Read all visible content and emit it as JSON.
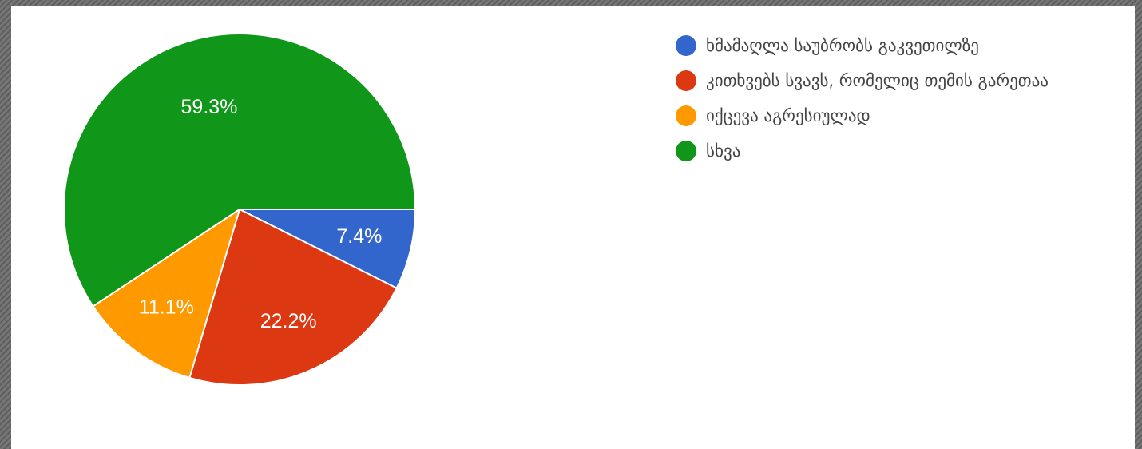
{
  "chart_data": {
    "type": "pie",
    "title": "",
    "slices": [
      {
        "label": "ხმამაღლა საუბრობს გაკვეთილზე",
        "value": 7.4,
        "display": "7.4%",
        "color": "#3366cc"
      },
      {
        "label": "კითხვებს სვავს, რომელიც თემის გარეთაა",
        "value": 22.2,
        "display": "22.2%",
        "color": "#dc3912"
      },
      {
        "label": "იქცევა აგრესიულად",
        "value": 11.1,
        "display": "11.1%",
        "color": "#ff9900"
      },
      {
        "label": "სხვა",
        "value": 59.3,
        "display": "59.3%",
        "color": "#109618"
      }
    ],
    "legend_position": "right",
    "start_angle": "3 o'clock",
    "direction": "clockwise"
  }
}
